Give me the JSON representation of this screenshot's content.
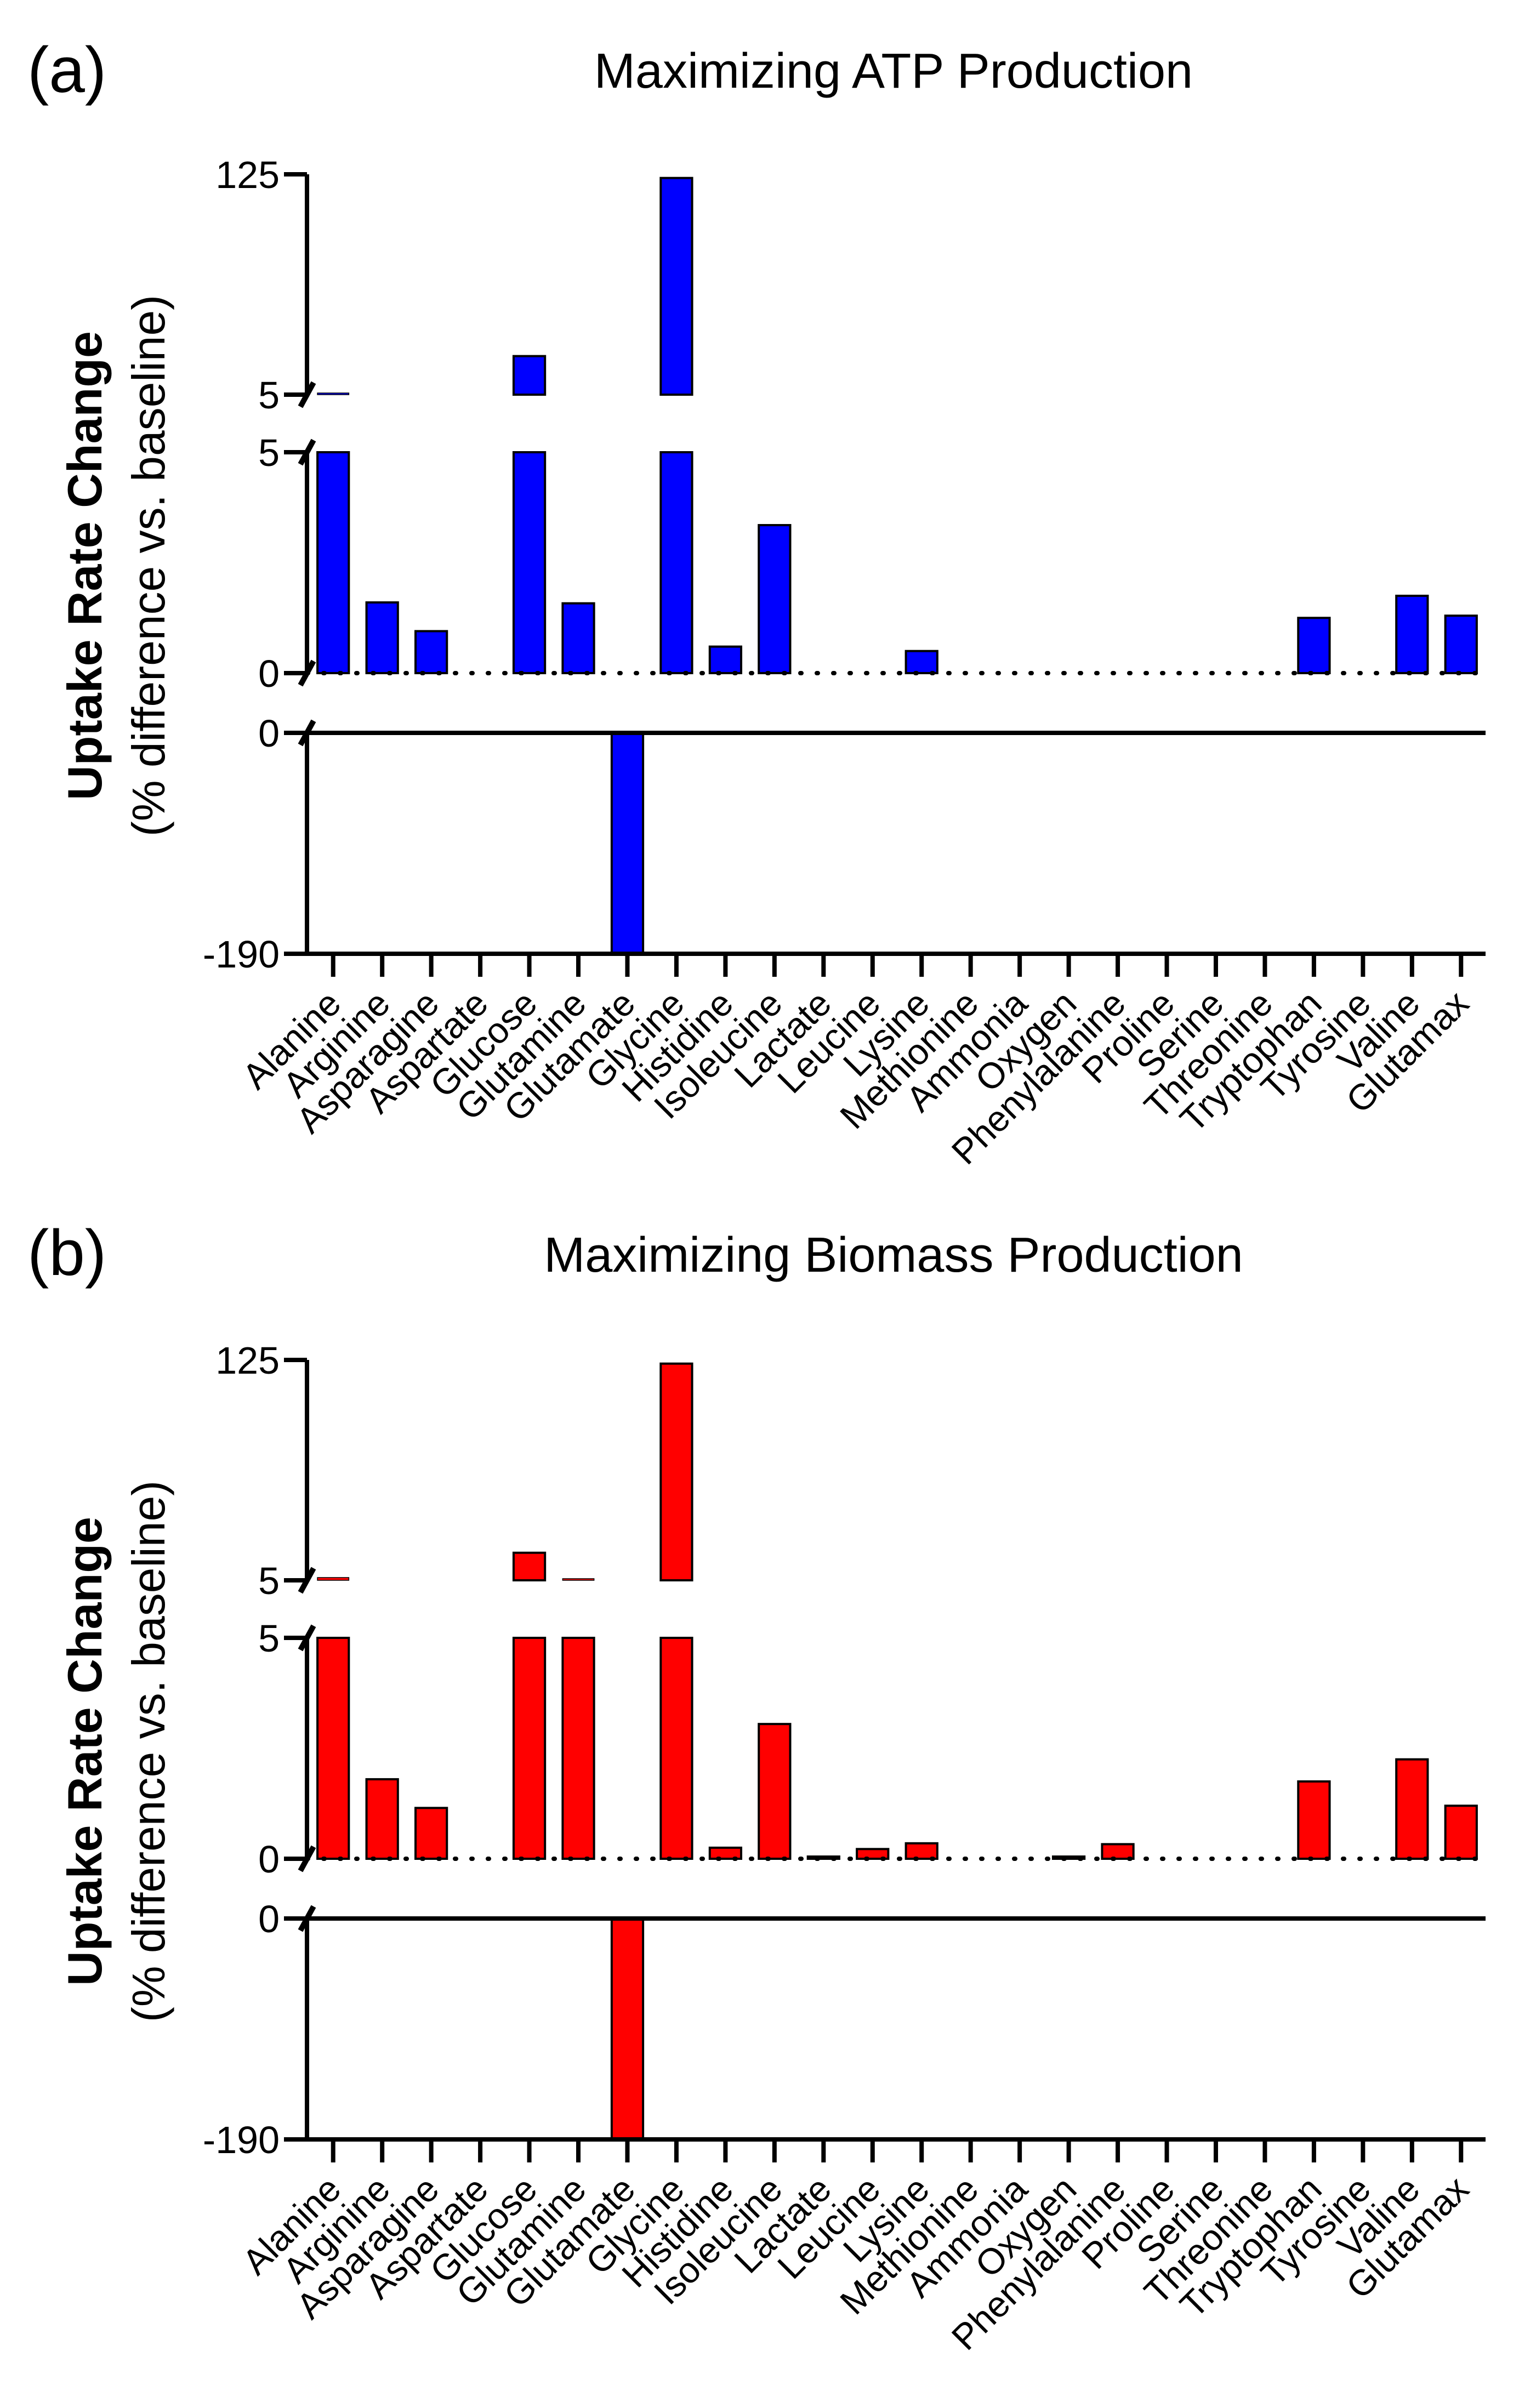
{
  "chart_data": [
    {
      "type": "bar",
      "panel_label": "(a)",
      "title": "Maximizing ATP Production",
      "ylabel": "Uptake Rate Change",
      "ylabel_sub": "(% difference vs. baseline)",
      "ylim": [
        -190,
        125
      ],
      "axis_breaks": [
        {
          "segment": "top",
          "range": [
            5,
            125
          ],
          "tick_labels": [
            "5",
            "125"
          ]
        },
        {
          "segment": "middle",
          "range": [
            0,
            5
          ],
          "tick_labels": [
            "0",
            "5"
          ]
        },
        {
          "segment": "bottom",
          "range": [
            -190,
            0
          ],
          "tick_labels": [
            "-190",
            "0"
          ]
        }
      ],
      "baseline_style": "dotted",
      "color": "#0000ff",
      "categories": [
        "Alanine",
        "Arginine",
        "Asparagine",
        "Aspartate",
        "Glucose",
        "Glutamine",
        "Glutamate",
        "Glycine",
        "Histidine",
        "Isoleucine",
        "Lactate",
        "Leucine",
        "Lysine",
        "Methionine",
        "Ammonia",
        "Oxygen",
        "Phenylalanine",
        "Proline",
        "Serine",
        "Threonine",
        "Tryptophan",
        "Tyrosine",
        "Valine",
        "Glutamax"
      ],
      "values": [
        5.3,
        1.6,
        0.95,
        0,
        26,
        1.58,
        -190,
        123,
        0.6,
        3.35,
        0,
        0,
        0.5,
        0,
        0,
        0,
        0,
        -0.3,
        0,
        0,
        1.25,
        0,
        1.75,
        1.3
      ]
    },
    {
      "type": "bar",
      "panel_label": "(b)",
      "title": "Maximizing Biomass Production",
      "ylabel": "Uptake Rate Change",
      "ylabel_sub": "(% difference vs. baseline)",
      "ylim": [
        -190,
        125
      ],
      "axis_breaks": [
        {
          "segment": "top",
          "range": [
            5,
            125
          ],
          "tick_labels": [
            "5",
            "125"
          ]
        },
        {
          "segment": "middle",
          "range": [
            0,
            5
          ],
          "tick_labels": [
            "0",
            "5"
          ]
        },
        {
          "segment": "bottom",
          "range": [
            -190,
            0
          ],
          "tick_labels": [
            "-190",
            "0"
          ]
        }
      ],
      "baseline_style": "dotted",
      "color": "#ff0000",
      "categories": [
        "Alanine",
        "Arginine",
        "Asparagine",
        "Aspartate",
        "Glucose",
        "Glutamine",
        "Glutamate",
        "Glycine",
        "Histidine",
        "Isoleucine",
        "Lactate",
        "Leucine",
        "Lysine",
        "Methionine",
        "Ammonia",
        "Oxygen",
        "Phenylalanine",
        "Proline",
        "Serine",
        "Threonine",
        "Tryptophan",
        "Tyrosine",
        "Valine",
        "Glutamax"
      ],
      "values": [
        6.5,
        1.8,
        1.15,
        0,
        20,
        5.4,
        -190,
        123,
        0.25,
        3.05,
        0.05,
        0.22,
        0.35,
        0,
        0,
        0.05,
        0.33,
        0,
        0,
        0,
        1.75,
        0,
        2.25,
        1.2
      ]
    }
  ]
}
